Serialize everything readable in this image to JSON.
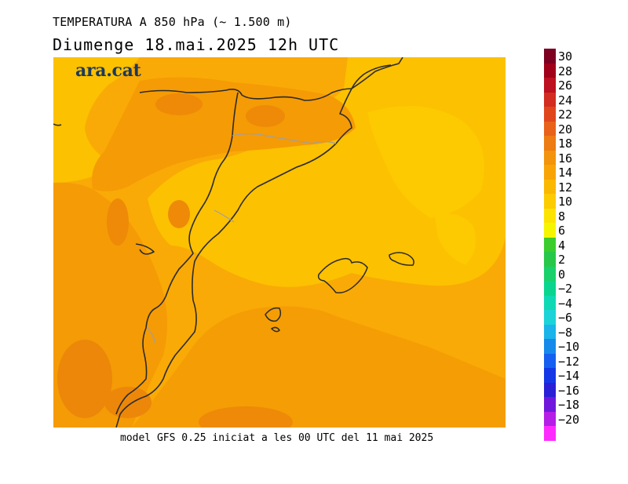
{
  "title": "TEMPERATURA A 850 hPa (~ 1.500 m)",
  "subtitle": "Diumenge  18.mai.2025 12h UTC",
  "footer": "model GFS 0.25 iniciat a les 00 UTC del 11 mai 2025",
  "logo": "ara.cat",
  "legend": {
    "labels": [
      "30",
      "28",
      "26",
      "24",
      "22",
      "20",
      "18",
      "16",
      "14",
      "12",
      "10",
      "8",
      "6",
      "4",
      "2",
      "0",
      "−2",
      "−4",
      "−6",
      "−8",
      "−10",
      "−12",
      "−14",
      "−16",
      "−18",
      "−20"
    ],
    "colors": [
      "#7d0021",
      "#a0001a",
      "#bd1020",
      "#d22d20",
      "#e0461c",
      "#e8621a",
      "#ed7c12",
      "#f2940c",
      "#f8a406",
      "#fbb800",
      "#fccb00",
      "#fde400",
      "#f5f500",
      "#3acd2d",
      "#27c84a",
      "#19d06a",
      "#0ad58f",
      "#0fd8b5",
      "#1bd3d8",
      "#1ab3ea",
      "#168aeb",
      "#1560f0",
      "#1538e6",
      "#2a20d6",
      "#6f18dc",
      "#b41ee6",
      "#ff2aff"
    ]
  },
  "map": {
    "background_color": "#f9a907",
    "zones": [
      {
        "name": "warm-north-band",
        "level": 14,
        "color": "#f59b05"
      },
      {
        "name": "warmer-cores",
        "level": 16,
        "color": "#ee8a08"
      },
      {
        "name": "cool-sea-zone",
        "level": 10,
        "color": "#fcc400"
      },
      {
        "name": "warm-south-zone",
        "level": 14,
        "color": "#f69a05"
      }
    ]
  }
}
